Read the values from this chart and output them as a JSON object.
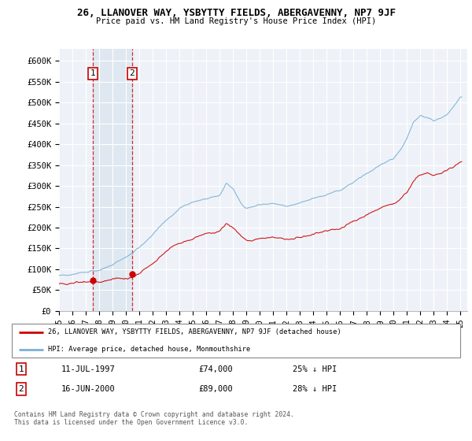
{
  "title1": "26, LLANOVER WAY, YSBYTTY FIELDS, ABERGAVENNY, NP7 9JF",
  "title2": "Price paid vs. HM Land Registry's House Price Index (HPI)",
  "ylabel_ticks": [
    "£0",
    "£50K",
    "£100K",
    "£150K",
    "£200K",
    "£250K",
    "£300K",
    "£350K",
    "£400K",
    "£450K",
    "£500K",
    "£550K",
    "£600K"
  ],
  "ylim": [
    0,
    630000
  ],
  "xlim_start": 1995.0,
  "xlim_end": 2025.5,
  "xticks": [
    1995,
    1996,
    1997,
    1998,
    1999,
    2000,
    2001,
    2002,
    2003,
    2004,
    2005,
    2006,
    2007,
    2008,
    2009,
    2010,
    2011,
    2012,
    2013,
    2014,
    2015,
    2016,
    2017,
    2018,
    2019,
    2020,
    2021,
    2022,
    2023,
    2024,
    2025
  ],
  "purchase1_year": 1997.53,
  "purchase1_price": 74000,
  "purchase2_year": 2000.46,
  "purchase2_price": 89000,
  "legend_line1": "26, LLANOVER WAY, YSBYTTY FIELDS, ABERGAVENNY, NP7 9JF (detached house)",
  "legend_line2": "HPI: Average price, detached house, Monmouthshire",
  "ann1_date": "11-JUL-1997",
  "ann1_price": "£74,000",
  "ann1_pct": "25% ↓ HPI",
  "ann2_date": "16-JUN-2000",
  "ann2_price": "£89,000",
  "ann2_pct": "28% ↓ HPI",
  "footer": "Contains HM Land Registry data © Crown copyright and database right 2024.\nThis data is licensed under the Open Government Licence v3.0.",
  "red_color": "#cc0000",
  "blue_color": "#7ab0d4",
  "bg_color": "#ffffff",
  "plot_bg": "#eef2f8",
  "grid_color": "#ffffff",
  "span_color": "#dce6f0"
}
